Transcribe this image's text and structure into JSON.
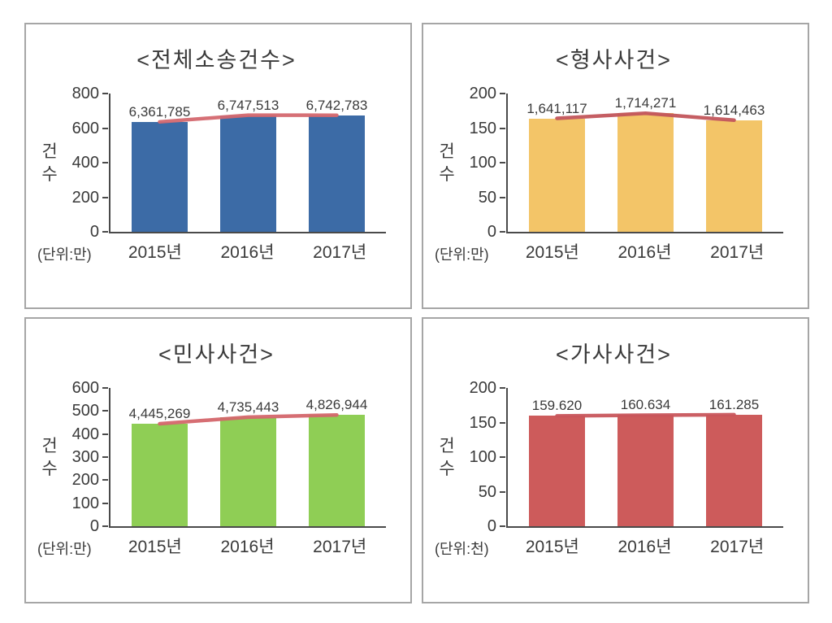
{
  "chart_data": [
    {
      "type": "bar",
      "title": "<전체소송건수>",
      "y_axis_label": "건수",
      "unit_label": "(단위:만)",
      "categories": [
        "2015년",
        "2016년",
        "2017년"
      ],
      "values": [
        6361785,
        6747513,
        6742783
      ],
      "value_labels": [
        "6,361,785",
        "6,747,513",
        "6,742,783"
      ],
      "scale_divisor": 10000,
      "y_ticks": [
        0,
        200,
        400,
        600,
        800
      ],
      "ylim": [
        0,
        800
      ],
      "grid": false,
      "legend": false,
      "overlay_line": true,
      "bar_color": "#3c6ba6",
      "line_color": "#d4686f"
    },
    {
      "type": "bar",
      "title": "<형사사건>",
      "y_axis_label": "건수",
      "unit_label": "(단위:만)",
      "categories": [
        "2015년",
        "2016년",
        "2017년"
      ],
      "values": [
        1641117,
        1714271,
        1614463
      ],
      "value_labels": [
        "1,641,117",
        "1,714,271",
        "1,614,463"
      ],
      "scale_divisor": 10000,
      "y_ticks": [
        0,
        50,
        100,
        150,
        200
      ],
      "ylim": [
        0,
        200
      ],
      "grid": false,
      "legend": false,
      "overlay_line": true,
      "bar_color": "#f3c568",
      "line_color": "#c2555b"
    },
    {
      "type": "bar",
      "title": "<민사사건>",
      "y_axis_label": "건수",
      "unit_label": "(단위:만)",
      "categories": [
        "2015년",
        "2016년",
        "2017년"
      ],
      "values": [
        4445269,
        4735443,
        4826944
      ],
      "value_labels": [
        "4,445,269",
        "4,735,443",
        "4,826,944"
      ],
      "scale_divisor": 10000,
      "y_ticks": [
        0,
        100,
        200,
        300,
        400,
        500,
        600
      ],
      "ylim": [
        0,
        600
      ],
      "grid": false,
      "legend": false,
      "overlay_line": true,
      "bar_color": "#8fce55",
      "line_color": "#d4666c"
    },
    {
      "type": "bar",
      "title": "<가사사건>",
      "y_axis_label": "건수",
      "unit_label": "(단위:천)",
      "categories": [
        "2015년",
        "2016년",
        "2017년"
      ],
      "values": [
        159620,
        160634,
        161285
      ],
      "value_labels": [
        "159.620",
        "160.634",
        "161.285"
      ],
      "scale_divisor": 1000,
      "y_ticks": [
        0,
        50,
        100,
        150,
        200
      ],
      "ylim": [
        0,
        200
      ],
      "grid": false,
      "legend": false,
      "overlay_line": true,
      "bar_color": "#cd5b5b",
      "line_color": "#c8565c"
    }
  ]
}
